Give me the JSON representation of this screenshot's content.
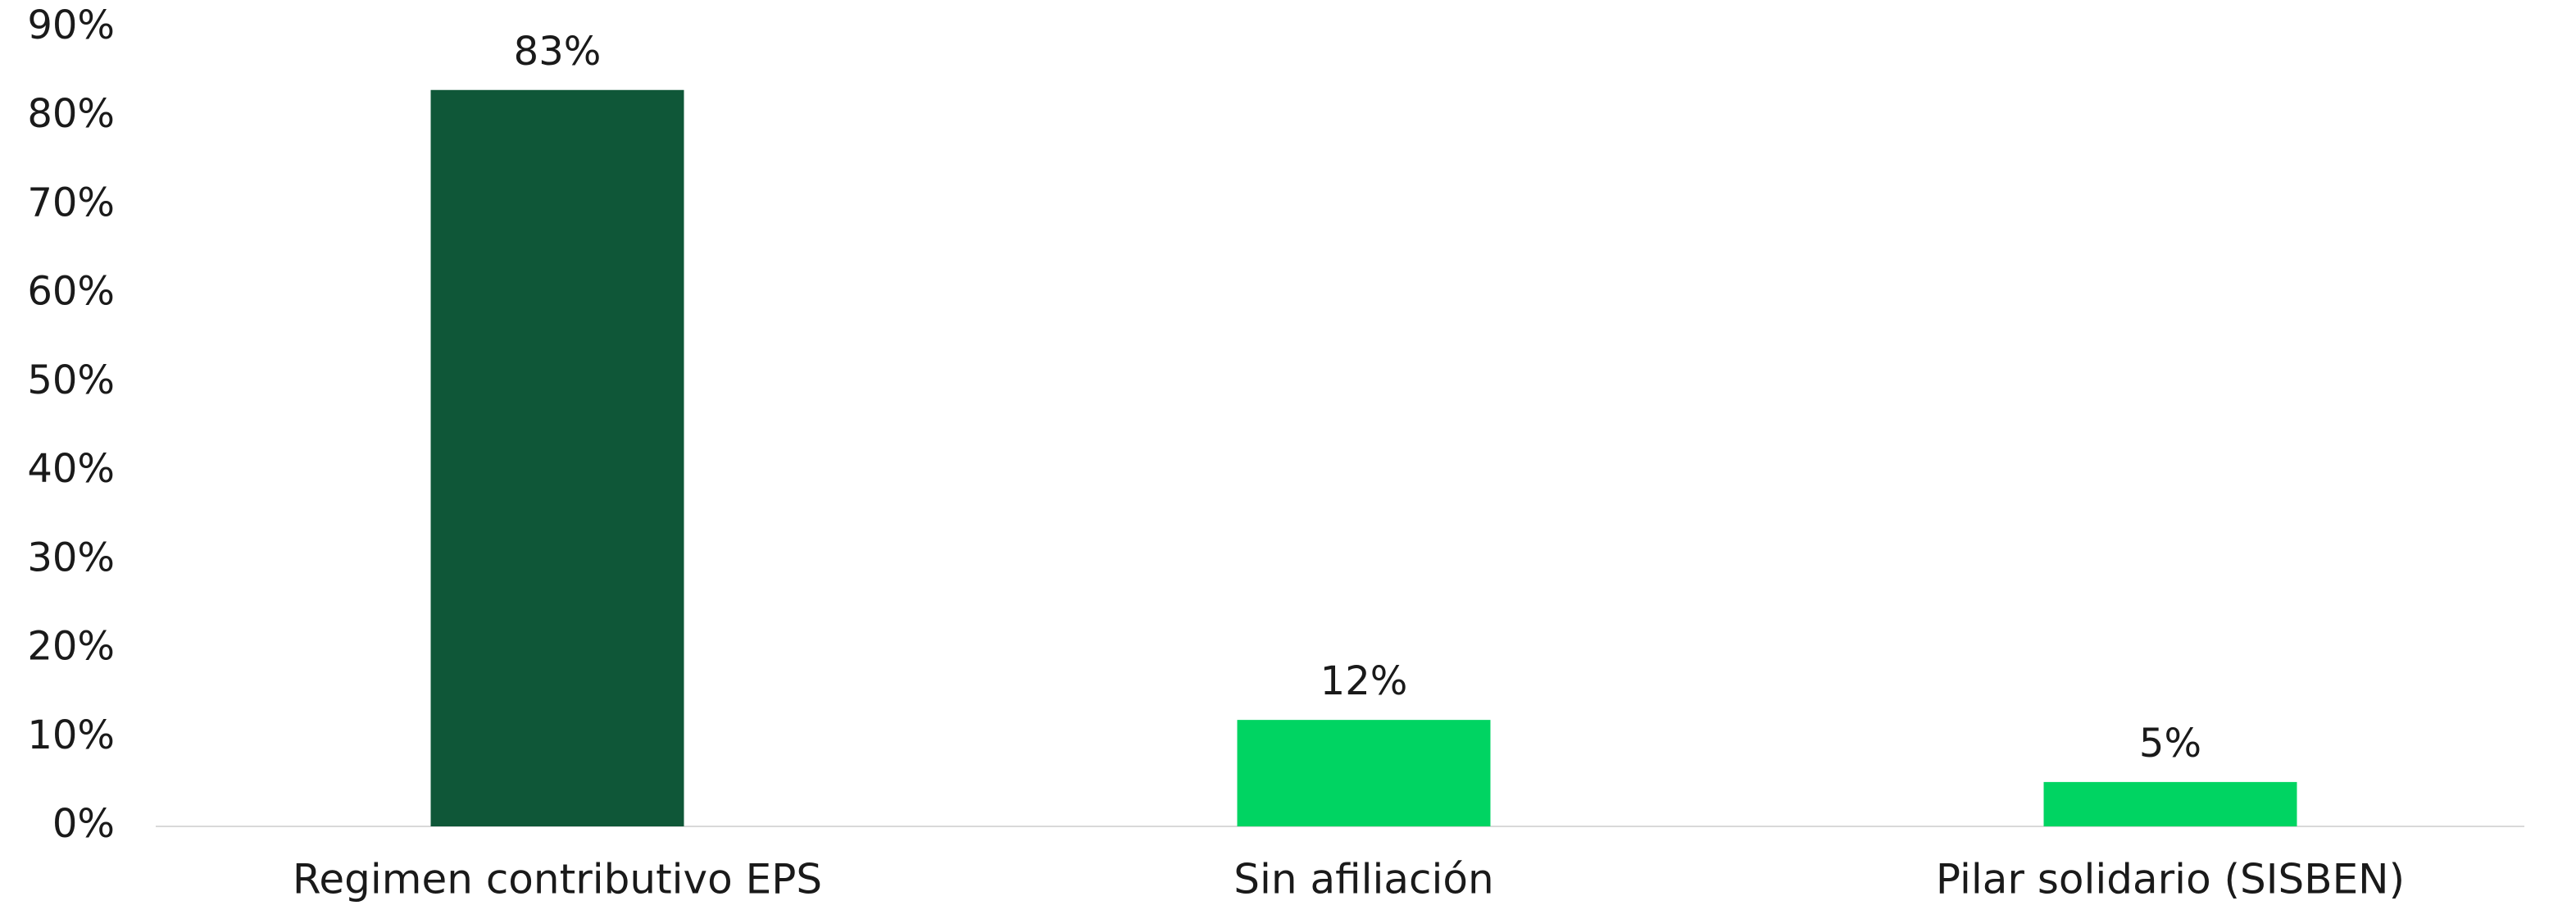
{
  "chart_data": {
    "type": "bar",
    "categories": [
      "Regimen contributivo EPS",
      "Sin afiliación",
      "Pilar solidario (SISBEN)"
    ],
    "values": [
      83,
      12,
      5
    ],
    "value_labels": [
      "83%",
      "12%",
      "5%"
    ],
    "colors": [
      "#0f5738",
      "#00d462",
      "#00d462"
    ],
    "ylim": [
      0,
      90
    ],
    "yticks": [
      {
        "value": 0,
        "label": "0%"
      },
      {
        "value": 10,
        "label": "10%"
      },
      {
        "value": 20,
        "label": "20%"
      },
      {
        "value": 30,
        "label": "30%"
      },
      {
        "value": 40,
        "label": "40%"
      },
      {
        "value": 50,
        "label": "50%"
      },
      {
        "value": 60,
        "label": "60%"
      },
      {
        "value": 70,
        "label": "70%"
      },
      {
        "value": 80,
        "label": "80%"
      },
      {
        "value": 90,
        "label": "90%"
      }
    ],
    "grid": false
  }
}
